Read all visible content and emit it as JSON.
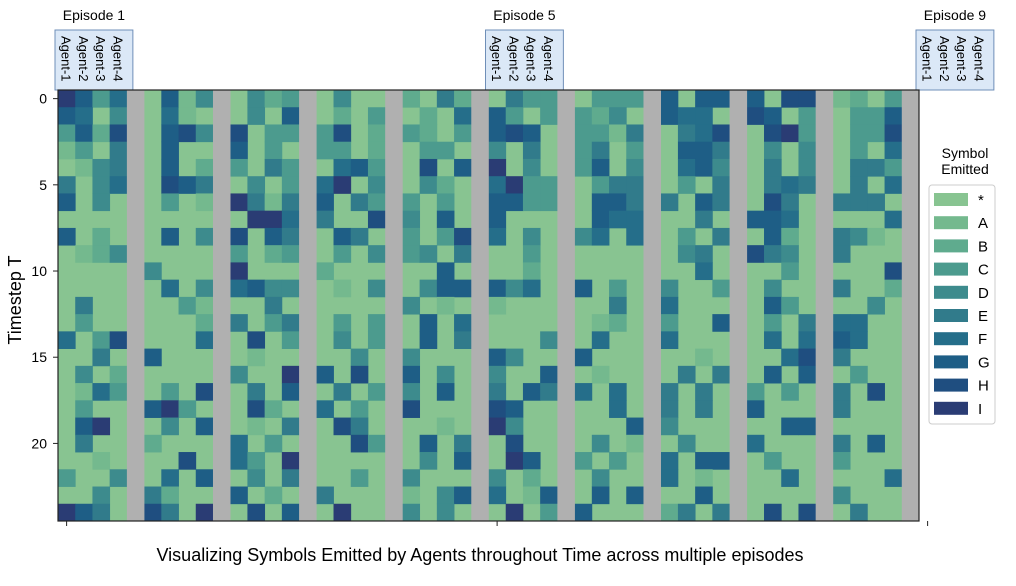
{
  "chart_data": {
    "type": "heatmap",
    "title": "",
    "xlabel": "Visualizing Symbols Emitted by Agents throughout Time across multiple episodes",
    "ylabel": "Timestep  T",
    "y_ticks": [
      0,
      5,
      10,
      15,
      20
    ],
    "ylim": [
      0,
      24
    ],
    "episodes": [
      {
        "label": "Episode 1",
        "column_start": 0
      },
      {
        "label": "Episode 5",
        "column_start": 20
      },
      {
        "label": "Episode 9",
        "column_start": 40
      }
    ],
    "agent_labels": [
      "Agent-1",
      "Agent-2",
      "Agent-3",
      "Agent-4"
    ],
    "legend": {
      "title_line1": "Symbol",
      "title_line2": "Emitted",
      "placement": "right",
      "symbols": [
        "*",
        "A",
        "B",
        "C",
        "D",
        "E",
        "F",
        "G",
        "H",
        "I"
      ],
      "colors": [
        "#88c491",
        "#74b98e",
        "#5fab8e",
        "#4c9b8e",
        "#3d8b8d",
        "#317b8b",
        "#256e8a",
        "#1e5e86",
        "#1f4e80",
        "#2a3c74"
      ]
    },
    "separator_color": "#b0b0b0",
    "num_episodes": 10,
    "columns_per_episode": 4,
    "grid": [
      "IGCF*GAD*DBC*D**B*EB*ECC*CCCG*GGG*HHAB*CC*E**GGEC",
      "GF*D*FA**D*G*B*C*B*FGC*CCBD*GFF*HG*C*CCG*F**GGEC",
      "CGBH*GHDH*CCCH*BCB*CGHG*CCAE*EFH*HIC*CCHF*FE*ECFH",
      "AC*E*G**G*C*CC*B*CC*D*E*CE*C*GGE*D*D*C*F*CEA*E*I",
      "*ADE*G*BC*EC*FGC*H*GI*D*CG*D*FGD*E*D*EEC*C*A*F*I",
      "E*DF*HGE*D*CFI*D*DB*FICC*CEE*C*E*EFE*E*F*F*C*C*C",
      "G*D**C*AIEAEG*ECC*C*GGCC*GGEE*GE*HE*EEE*E*GCI*AE",
      "*********IIFE**HD*G*G****GFF**E*GGF****F*IGFEC*F",
      "G*B**G*DH*GE*GE*C*CHF*D*DF*F*C*E*GB*EDA*DC*D*F*H",
      "*ABD****C*BC*C*DCD*E**C******DE*HED*E********C*G",
      "****D***I***B*****G***B*******F***C****HE****C**",
      "*****F*DFGDD*A*D*DGGGDF*G*C*D**C*D**E**B*F****F*",
      "*E****CA**E*****D*A*A*****E*F****GC***D*****G****",
      "*C*****BE*CE*C*C*G*F*****AB*C**G*C*EFF**D***E*E*",
      "F*CH***F*H*C*D*C*G*E***D*F**F****F*FGF*****H****",
      "**E*G****A****D*D***GD**G*****A***FHE****F*C*I**",
      "*D*B****D**IG*H*G*D*D**G*A***E*E*G*G*C**D***F*I*",
      "*AFC*C*H*E*G*E*CD*G*E*GEF*F*E*E*C*C*E*H**D*A*DGH",
      "*C**GIC**HB*F*C*H***HG****F*E*E*G***E*****A**G**",
      "*GI**D*G*A*E*HE***A*ID*****GD*****GG*****G**E**G",
      "*E**B***F*C***HC*G*E*H***D*A*D**F***E*G*****I*G*",
      "**A***H*FC*I*****D*G*IG*C*C*F*GG*C**C****E*C*D**",
      "C**D*F*G*D*E**C*D***D*B**D**F*A***F****F*D*C*AC*",
      "**D*EB**G*B*E***A*DGF*AG*G*G**G*****D***E*C*D*E*",
      "IGE*HE*I*H*G*I**D*D**I*CG***BE*E*H*H*E**IFEC*G*I"
    ]
  }
}
